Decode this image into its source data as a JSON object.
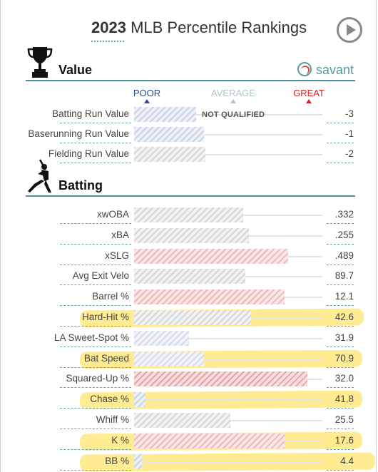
{
  "title": {
    "year": "2023",
    "rest": "MLB Percentile Rankings"
  },
  "brand": {
    "name": "savant",
    "color": "#5a9aa3"
  },
  "scale": {
    "poor": "POOR",
    "average": "AVERAGE",
    "great": "GREAT",
    "poor_color": "#2c4d8a",
    "average_color": "#a9c7c9",
    "great_color": "#c62828"
  },
  "value_section": {
    "title": "Value",
    "rows": [
      {
        "name": "Batting Run Value",
        "value": "-3",
        "note": "NOT QUALIFIED",
        "fill": 0.33,
        "pattern": "p-blue"
      },
      {
        "name": "Baserunning Run Value",
        "value": "-1",
        "fill": 0.37,
        "pattern": "p-blue"
      },
      {
        "name": "Fielding Run Value",
        "value": "-2",
        "fill": 0.38,
        "pattern": "p-grey"
      }
    ]
  },
  "batting_section": {
    "title": "Batting",
    "rows": [
      {
        "name": "xwOBA",
        "value": ".332",
        "fill": 0.58,
        "pattern": "p-grey",
        "highlight": false
      },
      {
        "name": "xBA",
        "value": ".255",
        "fill": 0.61,
        "pattern": "p-grey",
        "highlight": false
      },
      {
        "name": "xSLG",
        "value": ".489",
        "fill": 0.82,
        "pattern": "p-pink",
        "highlight": false
      },
      {
        "name": "Avg Exit Velo",
        "value": "89.7",
        "fill": 0.59,
        "pattern": "p-grey",
        "highlight": false
      },
      {
        "name": "Barrel %",
        "value": "12.1",
        "fill": 0.8,
        "pattern": "p-pink",
        "highlight": false
      },
      {
        "name": "Hard-Hit %",
        "value": "42.6",
        "fill": 0.62,
        "pattern": "p-grey",
        "highlight": true
      },
      {
        "name": "LA Sweet-Spot %",
        "value": "31.9",
        "fill": 0.29,
        "pattern": "p-lblue",
        "highlight": false
      },
      {
        "name": "Bat Speed",
        "value": "70.9",
        "fill": 0.37,
        "pattern": "p-lblue",
        "highlight": true
      },
      {
        "name": "Squared-Up %",
        "value": "32.0",
        "fill": 0.92,
        "pattern": "p-red",
        "highlight": false
      },
      {
        "name": "Chase %",
        "value": "41.8",
        "fill": 0.06,
        "pattern": "p-blue",
        "highlight": true
      },
      {
        "name": "Whiff %",
        "value": "25.5",
        "fill": 0.51,
        "pattern": "p-grey",
        "highlight": false
      },
      {
        "name": "K %",
        "value": "17.6",
        "fill": 0.8,
        "pattern": "p-pink",
        "highlight": true
      },
      {
        "name": "BB %",
        "value": "4.4",
        "fill": 0.04,
        "pattern": "p-blue",
        "highlight": true
      }
    ]
  }
}
